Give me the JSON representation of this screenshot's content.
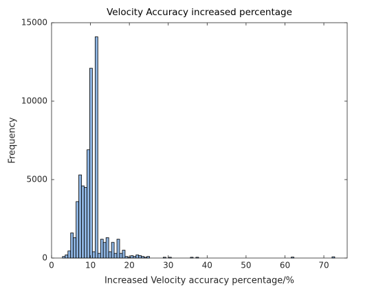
{
  "chart_data": {
    "type": "histogram",
    "title": "Velocity Accuracy increased percentage",
    "x_label": "Increased Velocity accuracy percentage/%",
    "y_label": "Frequency",
    "bins": [
      2.8,
      3.5,
      4.2,
      4.9,
      5.6,
      6.3,
      7,
      7.7,
      8.4,
      9.1,
      9.8,
      10.5,
      11.2,
      11.9,
      12.6,
      13.3,
      14,
      14.7,
      15.4,
      16.1,
      16.8,
      17.5,
      18.2,
      18.9,
      19.6,
      20.3,
      21,
      21.7,
      22.4,
      23.1,
      23.8,
      24.5,
      25.2,
      25.9,
      26.6,
      27.3,
      28,
      28.7,
      29.4,
      30.1,
      30.8,
      31.5,
      32.2,
      32.9,
      33.6,
      34.3,
      35,
      35.7,
      36.4,
      37.1,
      37.8,
      38.5,
      39.2,
      39.9,
      40.6,
      41.3,
      42,
      42.7,
      43.4,
      44.1,
      44.8,
      45.5,
      46.2,
      46.9,
      47.6,
      48.3,
      49,
      49.7,
      50.4,
      51.1,
      51.8,
      52.5,
      53.2,
      53.9,
      54.6,
      55.3,
      56,
      56.7,
      57.4,
      58.1,
      58.8,
      59.5,
      60.2,
      60.9,
      61.6,
      62.3,
      63,
      63.7,
      64.4,
      65.1,
      65.8,
      66.5,
      67.2,
      67.9,
      68.6,
      69.3,
      70,
      70.7,
      71.4,
      72.1,
      72.8
    ],
    "values": [
      100,
      200,
      450,
      1600,
      1300,
      3600,
      5300,
      4600,
      4500,
      6900,
      12100,
      400,
      14100,
      300,
      1200,
      1000,
      1300,
      400,
      1000,
      300,
      1200,
      300,
      500,
      100,
      50,
      150,
      100,
      200,
      150,
      100,
      50,
      100,
      0,
      0,
      0,
      0,
      0,
      50,
      0,
      50,
      0,
      0,
      0,
      0,
      0,
      0,
      0,
      50,
      0,
      50,
      0,
      0,
      0,
      0,
      0,
      0,
      0,
      0,
      0,
      0,
      0,
      0,
      0,
      0,
      0,
      0,
      0,
      0,
      0,
      0,
      0,
      0,
      0,
      0,
      0,
      0,
      0,
      0,
      0,
      0,
      0,
      0,
      0,
      0,
      60,
      0,
      0,
      0,
      0,
      0,
      0,
      0,
      0,
      0,
      0,
      0,
      0,
      0,
      0,
      80
    ],
    "color": "#8db3e0",
    "xlim": [
      0,
      76
    ],
    "ylim": [
      0,
      15000
    ],
    "xticks": [
      0,
      10,
      20,
      30,
      40,
      50,
      60,
      70
    ],
    "yticks": [
      0,
      5000,
      10000,
      15000
    ]
  }
}
